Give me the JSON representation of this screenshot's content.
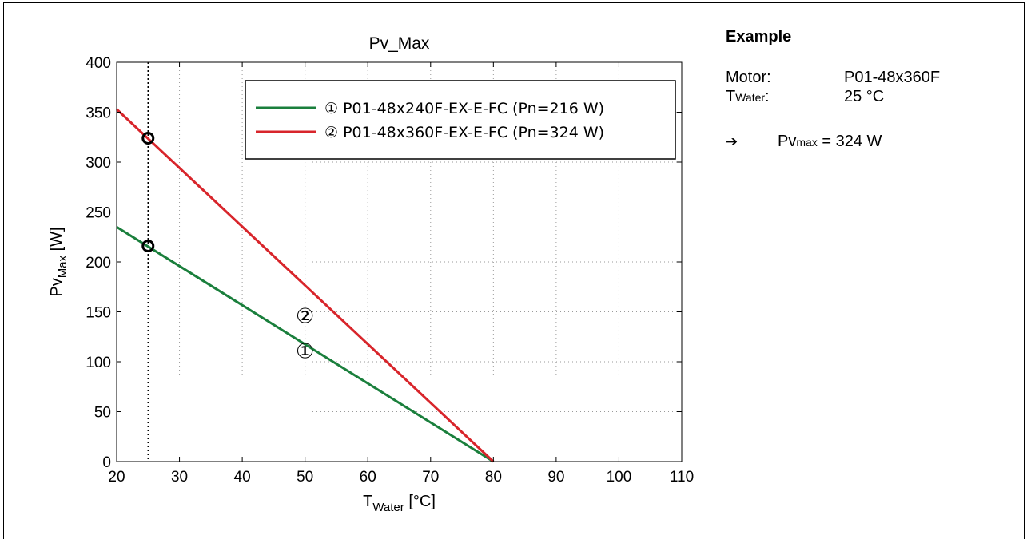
{
  "chart_data": {
    "type": "line",
    "title": "Pv_Max",
    "xlabel_main": "T",
    "xlabel_sub": "Water",
    "xlabel_unit": " [°C]",
    "ylabel_main": "Pv",
    "ylabel_sub": "Max",
    "ylabel_unit": " [W]",
    "xlim": [
      20,
      110
    ],
    "ylim": [
      0,
      400
    ],
    "xticks": [
      20,
      30,
      40,
      50,
      60,
      70,
      80,
      90,
      100,
      110
    ],
    "yticks": [
      0,
      50,
      100,
      150,
      200,
      250,
      300,
      350,
      400
    ],
    "grid": true,
    "legend_position": "top-right",
    "series": [
      {
        "name": "① P01-48x240F-EX-E-FC (Pn=216 W)",
        "color": "#1a7f3c",
        "x": [
          20,
          80
        ],
        "y": [
          235,
          0
        ],
        "curve_label": "①",
        "curve_label_at": [
          50,
          111
        ]
      },
      {
        "name": "② P01-48x360F-EX-E-FC (Pn=324 W)",
        "color": "#d8252b",
        "x": [
          20,
          80
        ],
        "y": [
          353,
          0
        ],
        "curve_label": "②",
        "curve_label_at": [
          50,
          146
        ]
      }
    ],
    "markers": [
      {
        "x": 25,
        "y": 324
      },
      {
        "x": 25,
        "y": 216
      }
    ],
    "vline_x": 25
  },
  "example": {
    "title": "Example",
    "motor_label": "Motor:",
    "motor_value": "P01-48x360F",
    "twater_main": "T",
    "twater_sub": "Water",
    "twater_colon": ":",
    "twater_value": "25 °C",
    "arrow_icon": "➔",
    "result_main": "Pv",
    "result_sub": "max",
    "result_value": " = 324 W"
  }
}
